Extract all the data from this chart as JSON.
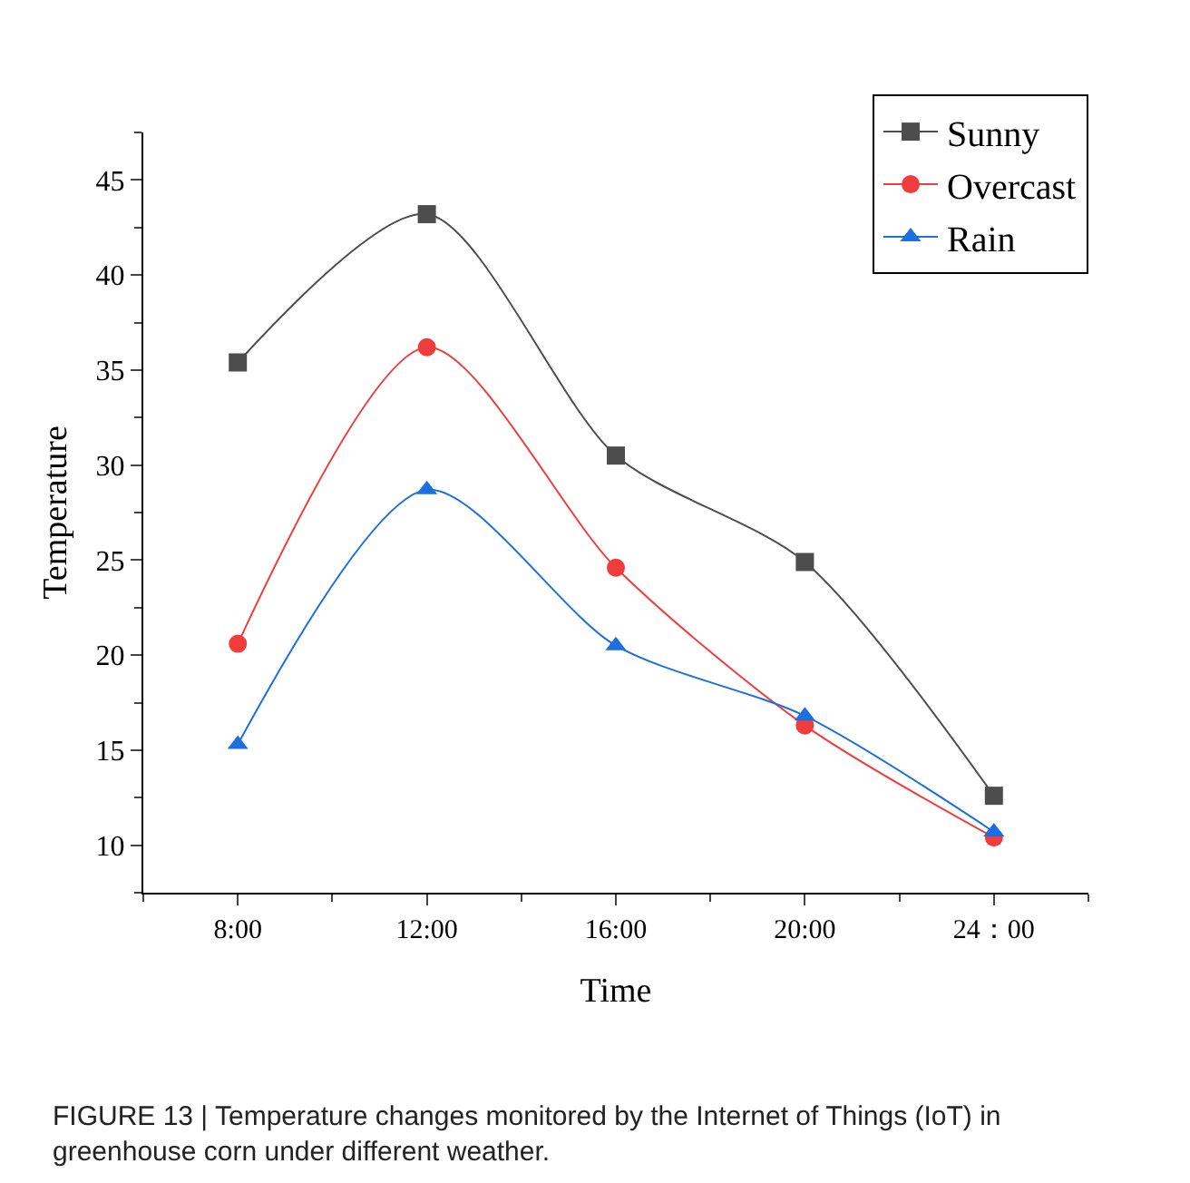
{
  "chart_data": {
    "type": "line",
    "xlabel": "Time",
    "ylabel": "Temperature",
    "categories": [
      "8:00",
      "12:00",
      "16:00",
      "20:00",
      "24：00"
    ],
    "series": [
      {
        "name": "Sunny",
        "color": "#4d4d4d",
        "marker": "square",
        "values": [
          35.4,
          43.2,
          30.5,
          24.9,
          12.6
        ]
      },
      {
        "name": "Overcast",
        "color": "#f03c3c",
        "marker": "circle",
        "values": [
          20.6,
          36.2,
          24.6,
          16.3,
          10.4
        ]
      },
      {
        "name": "Rain",
        "color": "#1b6fe0",
        "marker": "triangle",
        "values": [
          15.3,
          28.7,
          20.5,
          16.8,
          10.7
        ]
      }
    ],
    "ylim": [
      7.5,
      47.5
    ],
    "yticks": [
      10,
      15,
      20,
      25,
      30,
      35,
      40,
      45
    ],
    "legend": "top right",
    "annotations": [
      "FIGURE 13 | Temperature changes monitored by the Internet of Things (IoT) in greenhouse corn under different weather."
    ]
  }
}
